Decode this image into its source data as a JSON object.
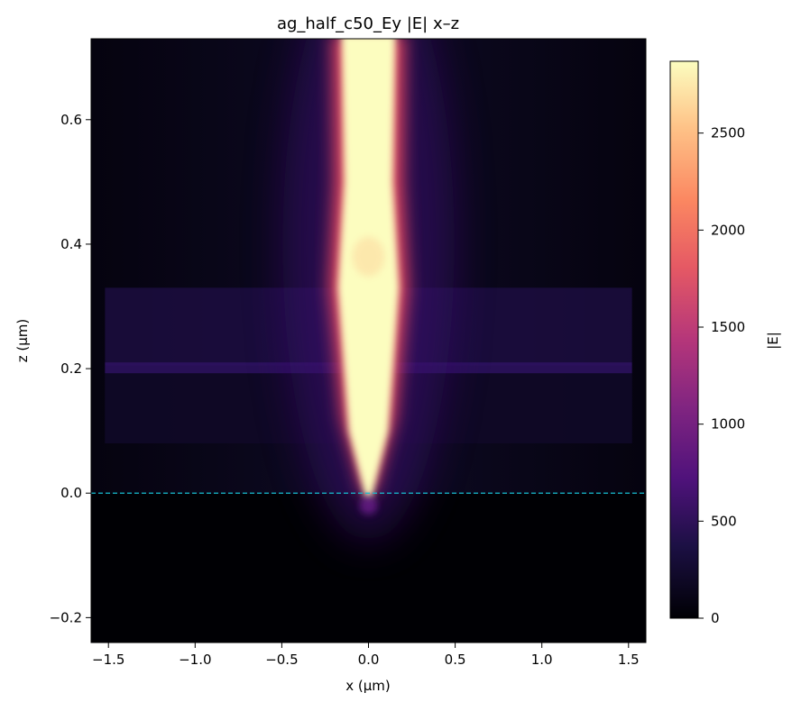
{
  "chart_data": {
    "type": "heatmap",
    "title": "ag_half_c50_Ey |E| x–z",
    "xlabel": "x (μm)",
    "ylabel": "z (μm)",
    "xlim": [
      -1.6,
      1.6
    ],
    "ylim": [
      -0.24,
      0.73
    ],
    "x_ticks": [
      -1.5,
      -1.0,
      -0.5,
      0.0,
      0.5,
      1.0,
      1.5
    ],
    "x_tick_labels": [
      "−1.5",
      "−1.0",
      "−0.5",
      "0.0",
      "0.5",
      "1.0",
      "1.5"
    ],
    "y_ticks": [
      -0.2,
      0.0,
      0.2,
      0.4,
      0.6
    ],
    "y_tick_labels": [
      "−0.2",
      "0.0",
      "0.2",
      "0.4",
      "0.6"
    ],
    "colormap": "magma",
    "colorbar": {
      "label": "|E|",
      "range": [
        0,
        2870
      ],
      "ticks": [
        0,
        500,
        1000,
        1500,
        2000,
        2500
      ],
      "tick_labels": [
        "0",
        "500",
        "1000",
        "1500",
        "2000",
        "2500"
      ]
    },
    "reference_line": {
      "z": 0.0,
      "style": "dashed",
      "color": "#17becf"
    },
    "field_features": {
      "hotspot_center_x": 0.0,
      "hotspot_z_range": [
        0.0,
        0.73
      ],
      "tip_apex_z": 0.0,
      "slab_z_range": [
        0.08,
        0.33
      ],
      "slab_x_range": [
        -1.52,
        1.52
      ],
      "peak_value": 2870
    },
    "grid": false,
    "legend": "none"
  }
}
